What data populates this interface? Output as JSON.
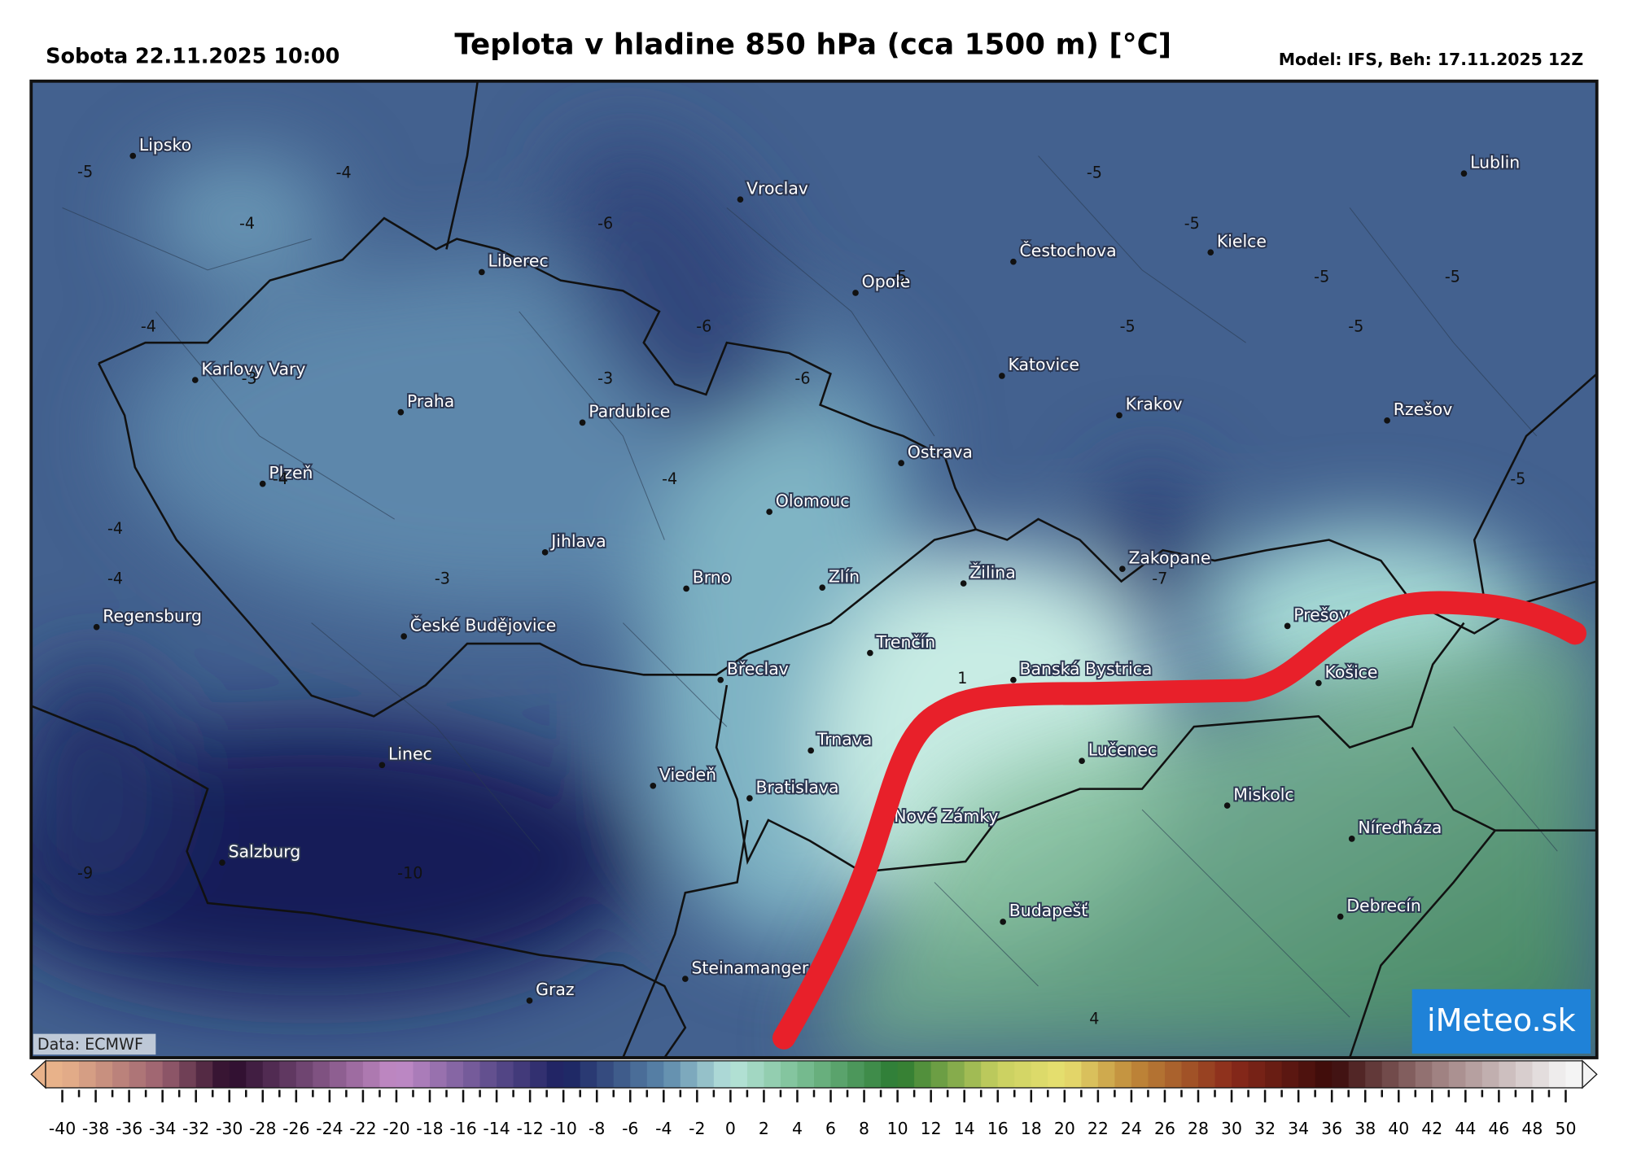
{
  "header": {
    "date": "Sobota 22.11.2025 10:00",
    "title": "Teplota v hladine 850 hPa (cca 1500 m) [°C]",
    "model": "Model: IFS, Beh: 17.11.2025 12Z"
  },
  "map": {
    "cities": [
      "Lipsko",
      "Vroclav",
      "Lublin",
      "Liberec",
      "Čestochova",
      "Kielce",
      "Opole",
      "Karlovy Vary",
      "Katovice",
      "Praha",
      "Pardubice",
      "Krakov",
      "Rzešov",
      "Ostrava",
      "Plzeň",
      "Olomouc",
      "Jihlava",
      "Zakopane",
      "Žilina",
      "Brno",
      "Zlín",
      "Regensburg",
      "České Budějovice",
      "Prešov",
      "Trenčín",
      "Břeclav",
      "Banská Bystrica",
      "Košice",
      "Trnava",
      "Linec",
      "Lučenec",
      "Viedeň",
      "Bratislava",
      "Miskolc",
      "Nové Zámky",
      "Níreďháza",
      "Salzburg",
      "Budapešť",
      "Debrecín",
      "Steinamanger",
      "Graz"
    ],
    "contour_labels": [
      -5,
      -4,
      -4,
      -6,
      -5,
      -5,
      -5,
      -5,
      -5,
      -4,
      -6,
      -5,
      -5,
      -3,
      -6,
      -3,
      -4,
      -4,
      -5,
      -4,
      -3,
      -4,
      -7,
      1,
      -9,
      -10,
      4
    ],
    "credit": "Data: ECMWF",
    "logo": "iMeteo.sk"
  },
  "colorbar": {
    "ticks": [
      -40,
      -38,
      -36,
      -34,
      -32,
      -30,
      -28,
      -26,
      -24,
      -22,
      -20,
      -18,
      -16,
      -14,
      -12,
      -10,
      -8,
      -6,
      -4,
      -2,
      0,
      2,
      4,
      6,
      8,
      10,
      12,
      14,
      16,
      18,
      20,
      22,
      24,
      26,
      28,
      30,
      32,
      34,
      36,
      38,
      40,
      42,
      44,
      46,
      48,
      50
    ]
  }
}
